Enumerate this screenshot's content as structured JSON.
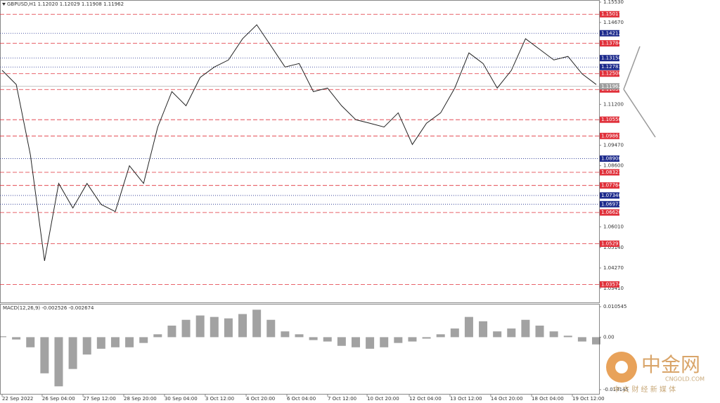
{
  "header": "GBPUSD,H1  1.12020 1.12029 1.11908 1.11962",
  "chart_data": [
    {
      "type": "line",
      "color": "#222222",
      "x": [
        0,
        1,
        2,
        3,
        4,
        5,
        6,
        7,
        8,
        9,
        10,
        11,
        12,
        13,
        14,
        15,
        16,
        17,
        18,
        19,
        20,
        21,
        22,
        23,
        24,
        25,
        26,
        27,
        28,
        29,
        30,
        31,
        32,
        33,
        34,
        35,
        36,
        37,
        38,
        39,
        40,
        41,
        42
      ],
      "values": [
        1.1264,
        1.1204,
        1.0906,
        1.0457,
        1.0785,
        1.0681,
        1.0785,
        1.0696,
        1.0666,
        1.086,
        1.0785,
        1.1024,
        1.1174,
        1.1114,
        1.1234,
        1.1278,
        1.1308,
        1.1398,
        1.1457,
        1.1368,
        1.1278,
        1.1293,
        1.1174,
        1.1189,
        1.1114,
        1.1055,
        1.104,
        1.1024,
        1.1084,
        1.095,
        1.104,
        1.1084,
        1.1189,
        1.1338,
        1.1293,
        1.1189,
        1.1264,
        1.1398,
        1.1353,
        1.1308,
        1.1323,
        1.1249,
        1.1204
      ],
      "xlim": [
        0,
        42
      ],
      "xticks": [
        {
          "value": 0,
          "label": "22 Sep 2022"
        },
        {
          "value": 2.83,
          "label": "26 Sep 04:00"
        },
        {
          "value": 5.72,
          "label": "27 Sep 12:00"
        },
        {
          "value": 8.6,
          "label": "28 Sep 20:00"
        },
        {
          "value": 11.48,
          "label": "30 Sep 04:00"
        },
        {
          "value": 14.36,
          "label": "3 Oct 12:00"
        },
        {
          "value": 17.25,
          "label": "4 Oct 20:00"
        },
        {
          "value": 20.13,
          "label": "6 Oct 04:00"
        },
        {
          "value": 23.01,
          "label": "7 Oct 12:00"
        },
        {
          "value": 25.8,
          "label": "10 Oct 20:00"
        },
        {
          "value": 28.78,
          "label": "12 Oct 04:00"
        },
        {
          "value": 31.66,
          "label": "13 Oct 12:00"
        },
        {
          "value": 34.54,
          "label": "14 Oct 20:00"
        },
        {
          "value": 37.43,
          "label": "18 Oct 04:00"
        },
        {
          "value": 40.31,
          "label": "19 Oct 12:00"
        }
      ],
      "ylim": [
        1.0281,
        1.1562
      ],
      "yticks": [
        {
          "value": 1.1553,
          "label": "1.15530"
        },
        {
          "value": 1.1467,
          "label": "1.14670"
        },
        {
          "value": 1.112,
          "label": "1.11200"
        },
        {
          "value": 1.0947,
          "label": "1.09470"
        },
        {
          "value": 1.086,
          "label": "1.08600"
        },
        {
          "value": 1.0601,
          "label": "1.06010"
        },
        {
          "value": 1.0514,
          "label": "1.05140"
        },
        {
          "value": 1.0427,
          "label": "1.04270"
        },
        {
          "value": 1.0341,
          "label": "1.03410"
        }
      ],
      "levels": [
        {
          "value": 1.15017,
          "color": "#e0303a"
        },
        {
          "value": 1.14212,
          "color": "#1c2a8c"
        },
        {
          "value": 1.13784,
          "color": "#e0303a"
        },
        {
          "value": 1.13158,
          "color": "#1c2a8c"
        },
        {
          "value": 1.12783,
          "color": "#1c2a8c"
        },
        {
          "value": 1.125,
          "label": "1.12500",
          "color": "#e0303a"
        },
        {
          "value": 1.1183,
          "label": "1.11830",
          "color": "#e0303a"
        },
        {
          "value": 1.1055,
          "label": "1.10550",
          "color": "#e0303a"
        },
        {
          "value": 1.09861,
          "color": "#e0303a"
        },
        {
          "value": 1.089,
          "label": "1.08900",
          "color": "#1c2a8c"
        },
        {
          "value": 1.08321,
          "color": "#e0303a"
        },
        {
          "value": 1.07764,
          "color": "#e0303a"
        },
        {
          "value": 1.0734,
          "label": "1.07340",
          "color": "#1c2a8c"
        },
        {
          "value": 1.06972,
          "color": "#1c2a8c"
        },
        {
          "value": 1.0662,
          "label": "1.06620",
          "color": "#e0303a"
        },
        {
          "value": 1.05297,
          "color": "#e0303a"
        },
        {
          "value": 1.03574,
          "color": "#e0303a"
        }
      ],
      "current": {
        "value": 1.11962,
        "color": "#9e9e9e"
      }
    },
    {
      "type": "bar",
      "title": "MACD(12,26,9) -0.002526 -0.002674",
      "color": "#555555",
      "values": [
        0.0003,
        -0.0008,
        -0.0035,
        -0.0125,
        -0.017,
        -0.011,
        -0.006,
        -0.004,
        -0.0035,
        -0.0035,
        -0.002,
        0.001,
        0.004,
        0.006,
        0.0075,
        0.007,
        0.0065,
        0.008,
        0.0095,
        0.006,
        0.002,
        0.001,
        -0.001,
        -0.0015,
        -0.003,
        -0.0035,
        -0.004,
        -0.0035,
        -0.002,
        -0.0015,
        -0.0005,
        0.001,
        0.003,
        0.007,
        0.0055,
        0.002,
        0.003,
        0.006,
        0.004,
        0.002,
        0.0005,
        -0.0015,
        -0.0025
      ],
      "ylim": [
        -0.0196,
        0.01153
      ],
      "yticks": [
        0.010545,
        {
          "value": 0,
          "label": "0.00"
        },
        -0.018145
      ]
    }
  ],
  "watermark": {
    "logo": "中金网",
    "site": "CNGOLD.COM",
    "slogan": "中 文 财 经 新 媒 体"
  }
}
